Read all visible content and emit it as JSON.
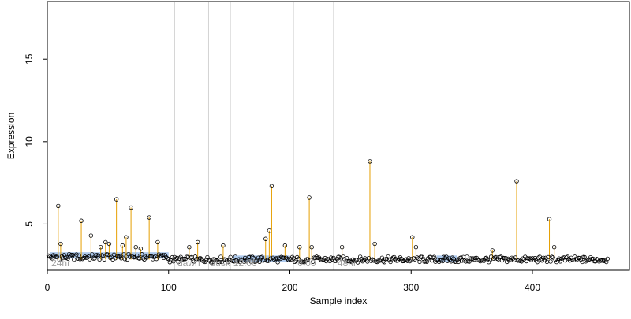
{
  "chart_data": {
    "type": "scatter",
    "title": "",
    "xlabel": "Sample index",
    "ylabel": "Expression",
    "xlim": [
      0,
      480
    ],
    "ylim": [
      2.2,
      18.5
    ],
    "xticks": [
      0,
      100,
      200,
      300,
      400
    ],
    "yticks": [
      5,
      10,
      15
    ],
    "grid": false,
    "baseline": 2.85,
    "sections": [
      {
        "label": "24hr",
        "x": 2
      },
      {
        "label": "dawn",
        "x": 106
      },
      {
        "label": "dusk",
        "x": 133
      },
      {
        "label": "12:00",
        "x": 152
      },
      {
        "label": "0:00",
        "x": 205
      },
      {
        "label": "48hr",
        "x": 238
      }
    ],
    "separators": [
      105,
      133,
      151,
      203,
      236
    ],
    "outliers": [
      {
        "x": 9,
        "y": 6.1
      },
      {
        "x": 11,
        "y": 3.8
      },
      {
        "x": 28,
        "y": 5.2
      },
      {
        "x": 36,
        "y": 4.3
      },
      {
        "x": 44,
        "y": 3.6
      },
      {
        "x": 48,
        "y": 3.9
      },
      {
        "x": 51,
        "y": 3.8
      },
      {
        "x": 57,
        "y": 6.5
      },
      {
        "x": 62,
        "y": 3.7
      },
      {
        "x": 65,
        "y": 4.2
      },
      {
        "x": 69,
        "y": 6.0
      },
      {
        "x": 73,
        "y": 3.6
      },
      {
        "x": 77,
        "y": 3.5
      },
      {
        "x": 84,
        "y": 5.4
      },
      {
        "x": 91,
        "y": 3.9
      },
      {
        "x": 117,
        "y": 3.6
      },
      {
        "x": 124,
        "y": 3.9
      },
      {
        "x": 145,
        "y": 3.7
      },
      {
        "x": 180,
        "y": 4.1
      },
      {
        "x": 183,
        "y": 4.6
      },
      {
        "x": 185,
        "y": 7.3
      },
      {
        "x": 196,
        "y": 3.7
      },
      {
        "x": 208,
        "y": 3.6
      },
      {
        "x": 216,
        "y": 6.6
      },
      {
        "x": 218,
        "y": 3.6
      },
      {
        "x": 243,
        "y": 3.6
      },
      {
        "x": 266,
        "y": 8.8
      },
      {
        "x": 270,
        "y": 3.8
      },
      {
        "x": 301,
        "y": 4.2
      },
      {
        "x": 304,
        "y": 3.6
      },
      {
        "x": 367,
        "y": 3.4
      },
      {
        "x": 387,
        "y": 7.6
      },
      {
        "x": 414,
        "y": 5.3
      },
      {
        "x": 418,
        "y": 3.6
      }
    ],
    "n_points": 462,
    "colors": {
      "point_stroke": "#000000",
      "stem": "#e69f00",
      "highlight_segment": "#8cb4e6",
      "separator": "#d3d3d3",
      "section_label": "#a0a0a0"
    },
    "highlight_segments": [
      {
        "x_start": 2,
        "x_end": 100,
        "y": 3.1
      },
      {
        "x_start": 153,
        "x_end": 200,
        "y": 2.9
      },
      {
        "x_start": 321,
        "x_end": 338,
        "y": 2.9
      }
    ]
  }
}
